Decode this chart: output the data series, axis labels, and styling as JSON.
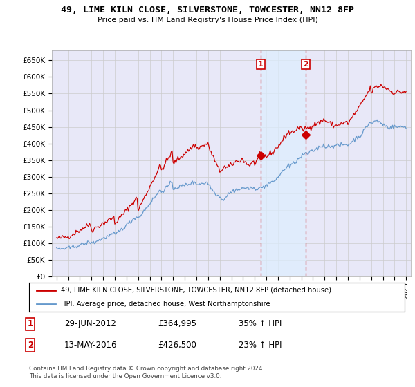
{
  "title1": "49, LIME KILN CLOSE, SILVERSTONE, TOWCESTER, NN12 8FP",
  "title2": "Price paid vs. HM Land Registry's House Price Index (HPI)",
  "legend_line1": "49, LIME KILN CLOSE, SILVERSTONE, TOWCESTER, NN12 8FP (detached house)",
  "legend_line2": "HPI: Average price, detached house, West Northamptonshire",
  "annotation1_label": "1",
  "annotation1_date": "29-JUN-2012",
  "annotation1_price": "£364,995",
  "annotation1_hpi": "35% ↑ HPI",
  "annotation2_label": "2",
  "annotation2_date": "13-MAY-2016",
  "annotation2_price": "£426,500",
  "annotation2_hpi": "23% ↑ HPI",
  "footnote": "Contains HM Land Registry data © Crown copyright and database right 2024.\nThis data is licensed under the Open Government Licence v3.0.",
  "red_color": "#cc0000",
  "blue_color": "#6699cc",
  "vline_color": "#cc0000",
  "background_color": "#ffffff",
  "grid_color": "#cccccc",
  "plot_bg_color": "#e8e8f8",
  "shade_color": "#ddeeff",
  "ylim_min": 0,
  "ylim_max": 680000,
  "ytick_step": 50000,
  "sale1_x": 2012.5,
  "sale1_price": 364995,
  "sale2_x": 2016.37,
  "sale2_price": 426500,
  "xmin": 1994.6,
  "xmax": 2025.4
}
